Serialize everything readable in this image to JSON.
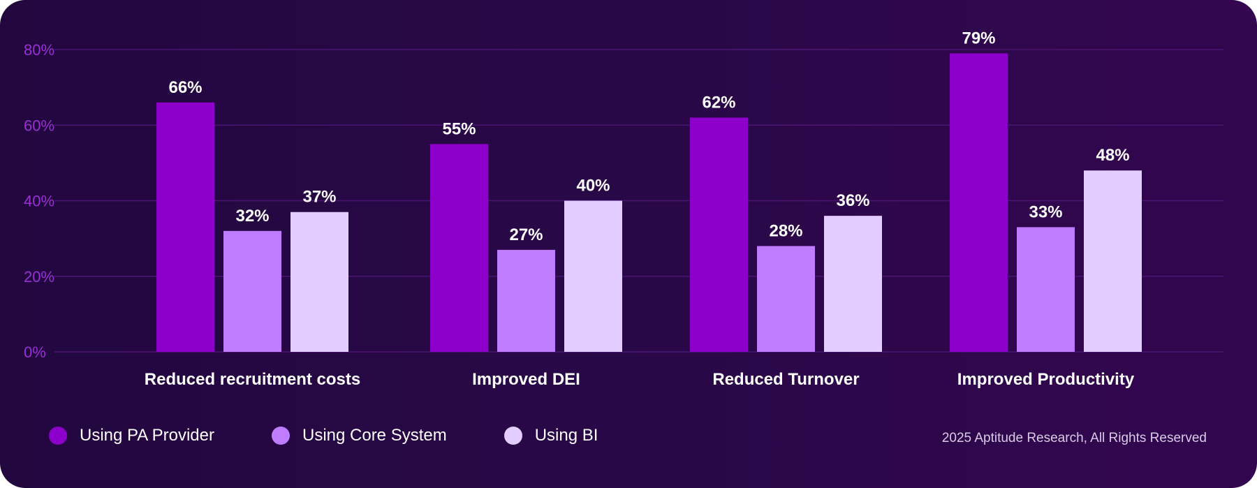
{
  "chart_data": {
    "type": "bar",
    "categories": [
      "Reduced recruitment costs",
      "Improved DEI",
      "Reduced Turnover",
      "Improved Productivity"
    ],
    "series": [
      {
        "name": "Using PA Provider",
        "color": "#8d00cb",
        "values": [
          66,
          55,
          62,
          79
        ],
        "labels": [
          "66%",
          "55%",
          "62%",
          "79%"
        ]
      },
      {
        "name": "Using Core System",
        "color": "#bf7cff",
        "values": [
          32,
          27,
          28,
          33
        ],
        "labels": [
          "32%",
          "27%",
          "28%",
          "33%"
        ]
      },
      {
        "name": "Using BI",
        "color": "#e3ccff",
        "values": [
          37,
          40,
          36,
          48
        ],
        "labels": [
          "37%",
          "40%",
          "36%",
          "48%"
        ]
      }
    ],
    "yticks": [
      "0%",
      "20%",
      "40%",
      "60%",
      "80%"
    ],
    "ylim": [
      0,
      80
    ],
    "grid": true,
    "legend_position": "bottom-left",
    "title": "",
    "xlabel": "",
    "ylabel": ""
  },
  "footer": {
    "copyright": "2025 Aptitude Research, All Rights Reserved"
  },
  "colors": {
    "axis_text": "#9b2fd6",
    "grid": "#4a1473",
    "value_label": "#ffffff",
    "category_label": "#ffffff"
  }
}
